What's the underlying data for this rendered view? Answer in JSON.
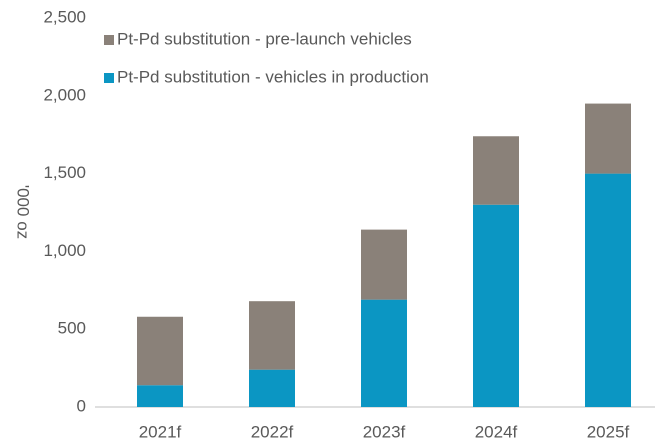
{
  "chart_data": {
    "type": "stacked_bar",
    "y_label": "'000 oz",
    "categories": [
      "2021f",
      "2022f",
      "2023f",
      "2024f",
      "2025f"
    ],
    "series": [
      {
        "name": "Pt-Pd substitution - vehicles in production",
        "color": "#0b96c3",
        "values": [
          140,
          240,
          690,
          1300,
          1500
        ]
      },
      {
        "name": "Pt-Pd substitution - pre-launch vehicles",
        "color": "#8a8179",
        "values": [
          440,
          440,
          450,
          440,
          450
        ]
      }
    ],
    "ylim": [
      0,
      2500
    ],
    "yticks": [
      0,
      500,
      {
        "value": 1000,
        "label": "1,000"
      },
      {
        "value": 1500,
        "label": "1,500"
      },
      {
        "value": 2000,
        "label": "2,000"
      },
      {
        "value": 2500,
        "label": "2,500"
      }
    ],
    "legend": "top-left"
  }
}
